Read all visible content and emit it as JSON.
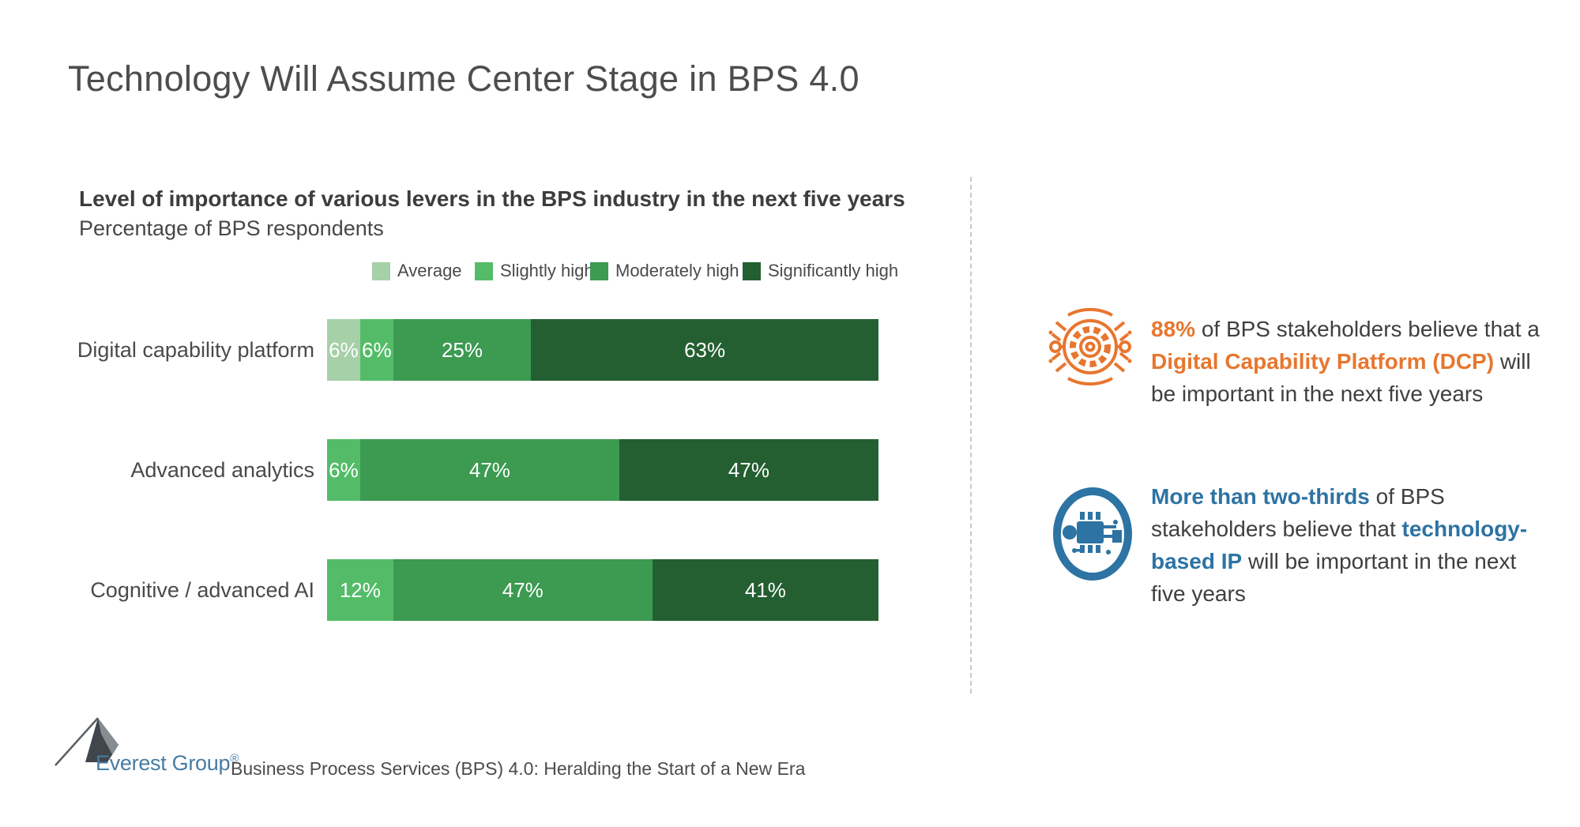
{
  "page": {
    "title": "Technology Will Assume Center Stage in BPS 4.0"
  },
  "chart": {
    "heading": "Level of importance of various levers in the BPS industry in the next five years",
    "subheading": "Percentage of BPS respondents"
  },
  "chart_data": {
    "type": "bar",
    "stacked": true,
    "orientation": "horizontal",
    "title": "Level of importance of various levers in the BPS industry in the next five years",
    "subtitle": "Percentage of BPS respondents",
    "xlim": [
      0,
      100
    ],
    "value_suffix": "%",
    "grid": false,
    "legend_position": "top",
    "categories": [
      "Digital capability platform",
      "Advanced analytics",
      "Cognitive / advanced AI"
    ],
    "legend": [
      {
        "label": "Average",
        "color": "#a6d0a8"
      },
      {
        "label": "Slightly high",
        "color": "#54bc68"
      },
      {
        "label": "Moderately high",
        "color": "#3c9a51"
      },
      {
        "label": "Significantly high",
        "color": "#245f31"
      }
    ],
    "series": [
      {
        "name": "Average",
        "values": [
          6,
          0,
          0
        ]
      },
      {
        "name": "Slightly high",
        "values": [
          6,
          6,
          12
        ]
      },
      {
        "name": "Moderately high",
        "values": [
          25,
          47,
          47
        ]
      },
      {
        "name": "Significantly high",
        "values": [
          63,
          47,
          41
        ]
      }
    ]
  },
  "callouts": [
    {
      "id": "dcp",
      "icon": "circuit-gear-icon",
      "accent": "orange",
      "lines": [
        [
          {
            "t": "88%",
            "b": true,
            "c": "orange"
          },
          {
            "t": " of BPS stakeholders believe that a"
          }
        ],
        [
          {
            "t": "Digital Capability Platform (DCP)",
            "b": true,
            "c": "orange"
          },
          {
            "t": " will"
          }
        ],
        [
          {
            "t": "be important in the next five years"
          }
        ]
      ]
    },
    {
      "id": "tech-ip",
      "icon": "microchip-icon",
      "accent": "blue",
      "lines": [
        [
          {
            "t": "More than two-thirds",
            "b": true,
            "c": "blue"
          },
          {
            "t": " of BPS"
          }
        ],
        [
          {
            "t": "stakeholders believe that "
          },
          {
            "t": "technology-",
            "b": true,
            "c": "blue"
          }
        ],
        [
          {
            "t": "based IP",
            "b": true,
            "c": "blue"
          },
          {
            "t": " will be important in the next"
          }
        ],
        [
          {
            "t": "five years"
          }
        ]
      ]
    }
  ],
  "footer": {
    "brand": "Everest Group",
    "registered": "®",
    "source": "Business Process Services (BPS) 4.0: Heralding the Start of a New Era"
  },
  "colors": {
    "orange": "#e8762e",
    "blue": "#2d73a3",
    "body_text": "#3f3f3f",
    "title_text": "#4d4d4d",
    "brand_blue": "#477ca3"
  }
}
